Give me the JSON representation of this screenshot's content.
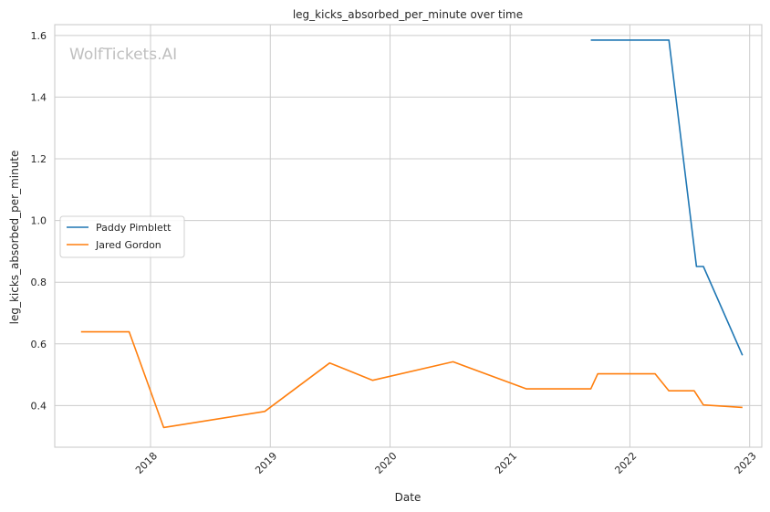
{
  "chart_data": {
    "type": "line",
    "title": "leg_kicks_absorbed_per_minute over time",
    "xlabel": "Date",
    "ylabel": "leg_kicks_absorbed_per_minute",
    "watermark": "WolfTickets.AI",
    "x_ticks": [
      "2018",
      "2019",
      "2020",
      "2021",
      "2022",
      "2023"
    ],
    "y_ticks": [
      "0.4",
      "0.6",
      "0.8",
      "1.0",
      "1.2",
      "1.4",
      "1.6"
    ],
    "xlim": [
      "2017-03-15",
      "2023-02-07"
    ],
    "ylim": [
      0.265,
      1.635
    ],
    "grid": true,
    "legend_position": "center-left",
    "series": [
      {
        "name": "Paddy Pimblett",
        "color": "#1f77b4",
        "points": [
          [
            "2021-09-04",
            1.585
          ],
          [
            "2022-04-30",
            1.585
          ],
          [
            "2022-07-23",
            0.851
          ],
          [
            "2022-08-13",
            0.851
          ],
          [
            "2022-12-10",
            0.563
          ]
        ]
      },
      {
        "name": "Jared Gordon",
        "color": "#ff7f0e",
        "points": [
          [
            "2017-06-03",
            0.639
          ],
          [
            "2017-10-28",
            0.639
          ],
          [
            "2018-02-10",
            0.329
          ],
          [
            "2018-12-15",
            0.381
          ],
          [
            "2019-07-01",
            0.538
          ],
          [
            "2019-11-09",
            0.482
          ],
          [
            "2020-07-11",
            0.542
          ],
          [
            "2021-02-20",
            0.454
          ],
          [
            "2021-09-04",
            0.454
          ],
          [
            "2021-09-25",
            0.503
          ],
          [
            "2022-03-19",
            0.503
          ],
          [
            "2022-04-30",
            0.448
          ],
          [
            "2022-07-16",
            0.448
          ],
          [
            "2022-08-13",
            0.402
          ],
          [
            "2022-12-10",
            0.394
          ]
        ]
      }
    ]
  }
}
